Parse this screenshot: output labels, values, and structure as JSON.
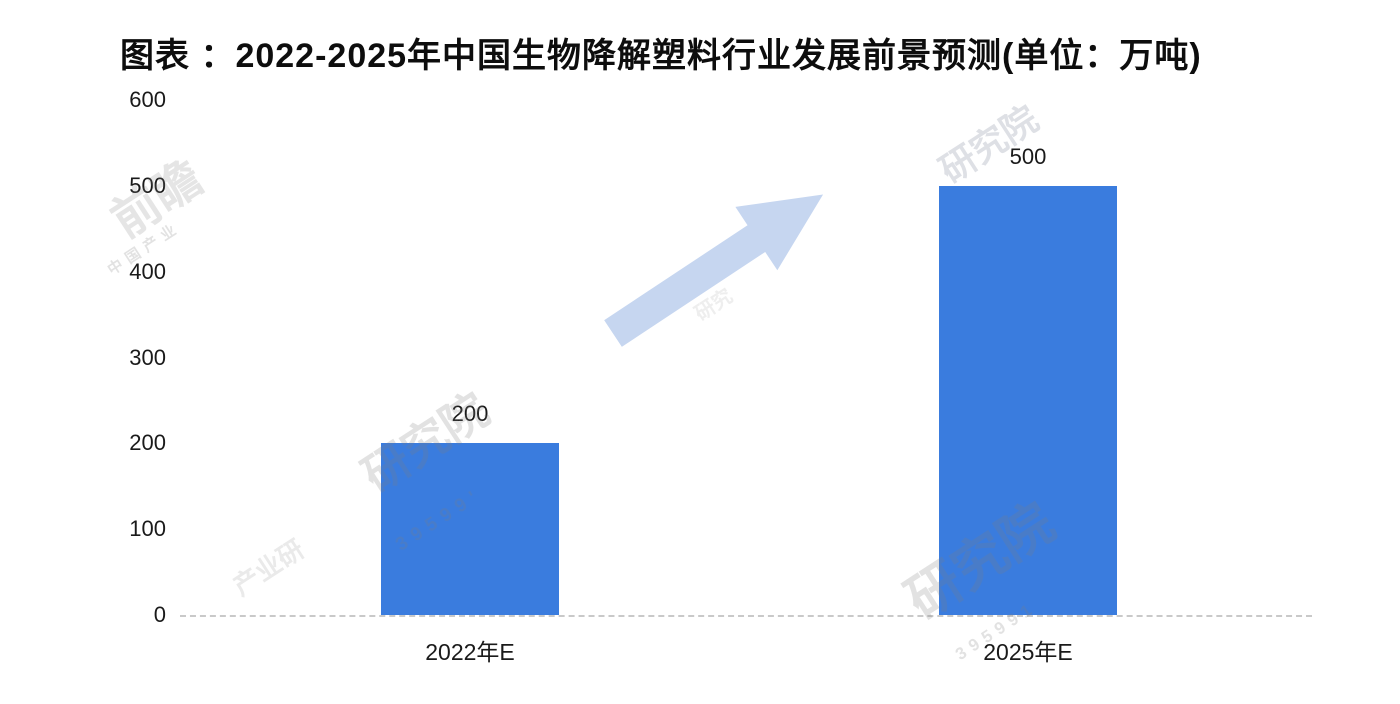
{
  "header": {
    "title": "图表 ：2022-2025年中国生物降解塑料行业发展前景预测(单位：万吨)"
  },
  "chart_data": {
    "type": "bar",
    "title": "2022-2025年中国生物降解塑料行业发展前景预测",
    "unit": "万吨",
    "categories": [
      "2022年E",
      "2025年E"
    ],
    "values": [
      200,
      500
    ],
    "data_labels": [
      "200",
      "500"
    ],
    "xlabel": "",
    "ylabel": "",
    "ylim": [
      0,
      600
    ],
    "yticks": [
      0,
      100,
      200,
      300,
      400,
      500,
      600
    ],
    "grid": false,
    "legend": "none",
    "bar_color": "#3a7cde",
    "arrow_color": "#c6d6f0",
    "axis_line_color": "#c9c9c9",
    "text_color": "#1a1a1a"
  },
  "decorations": {
    "trend_arrow": "up-right growth arrow between bars",
    "watermarks": [
      "前瞻",
      "中国产业",
      "研究院",
      "39599'",
      "研究院",
      "研究院",
      "395991",
      "产业研",
      "研究"
    ]
  }
}
